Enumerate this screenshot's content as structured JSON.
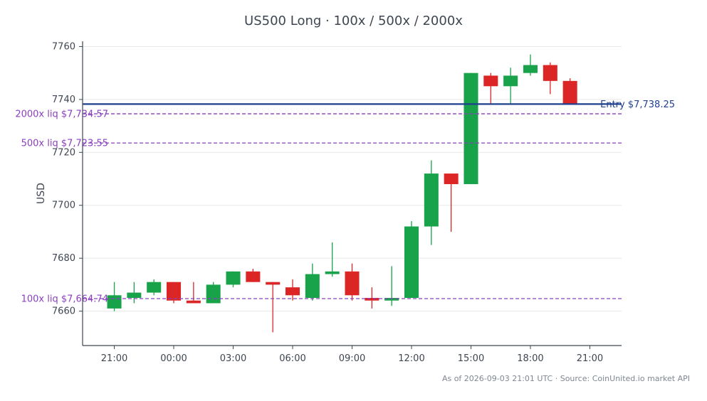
{
  "chart_data": {
    "type": "candlestick",
    "title": "US500 Long · 100x / 500x / 2000x",
    "ylabel": "USD",
    "xlabel": "",
    "ylim": [
      7647,
      7762
    ],
    "yticks": [
      7660,
      7680,
      7700,
      7720,
      7740,
      7760
    ],
    "xticks": [
      {
        "hour": 0,
        "label": "21:00"
      },
      {
        "hour": 3,
        "label": "00:00"
      },
      {
        "hour": 6,
        "label": "03:00"
      },
      {
        "hour": 9,
        "label": "06:00"
      },
      {
        "hour": 12,
        "label": "09:00"
      },
      {
        "hour": 15,
        "label": "12:00"
      },
      {
        "hour": 18,
        "label": "15:00"
      },
      {
        "hour": 21,
        "label": "18:00"
      },
      {
        "hour": 24,
        "label": "21:00"
      }
    ],
    "xlim": [
      -1.6,
      25.6
    ],
    "grid": true,
    "colors": {
      "up": "#18a34a",
      "down": "#dc2626",
      "entry": "#1f3f8f",
      "liq": "#8a3fc0",
      "grid": "#e8e8e8",
      "axis": "#3e4651"
    },
    "candles": [
      {
        "hour": 0,
        "open": 7661,
        "high": 7671,
        "low": 7660,
        "close": 7666
      },
      {
        "hour": 1,
        "open": 7665,
        "high": 7671,
        "low": 7663,
        "close": 7667
      },
      {
        "hour": 2,
        "open": 7667,
        "high": 7672,
        "low": 7666,
        "close": 7671
      },
      {
        "hour": 3,
        "open": 7671,
        "high": 7671,
        "low": 7663,
        "close": 7664
      },
      {
        "hour": 4,
        "open": 7664,
        "high": 7671,
        "low": 7663,
        "close": 7663
      },
      {
        "hour": 5,
        "open": 7663,
        "high": 7671,
        "low": 7663,
        "close": 7670
      },
      {
        "hour": 6,
        "open": 7670,
        "high": 7675,
        "low": 7669,
        "close": 7675
      },
      {
        "hour": 7,
        "open": 7675,
        "high": 7676,
        "low": 7671,
        "close": 7671
      },
      {
        "hour": 8,
        "open": 7671,
        "high": 7671,
        "low": 7652,
        "close": 7670
      },
      {
        "hour": 9,
        "open": 7669,
        "high": 7672,
        "low": 7664,
        "close": 7666
      },
      {
        "hour": 10,
        "open": 7665,
        "high": 7678,
        "low": 7664,
        "close": 7674
      },
      {
        "hour": 11,
        "open": 7674,
        "high": 7686,
        "low": 7673,
        "close": 7675
      },
      {
        "hour": 12,
        "open": 7675,
        "high": 7678,
        "low": 7664,
        "close": 7666
      },
      {
        "hour": 13,
        "open": 7665,
        "high": 7669,
        "low": 7661,
        "close": 7664
      },
      {
        "hour": 14,
        "open": 7664,
        "high": 7677,
        "low": 7662,
        "close": 7665
      },
      {
        "hour": 15,
        "open": 7665,
        "high": 7694,
        "low": 7665,
        "close": 7692
      },
      {
        "hour": 16,
        "open": 7692,
        "high": 7717,
        "low": 7685,
        "close": 7712
      },
      {
        "hour": 17,
        "open": 7712,
        "high": 7712,
        "low": 7690,
        "close": 7708
      },
      {
        "hour": 18,
        "open": 7708,
        "high": 7750,
        "low": 7708,
        "close": 7750
      },
      {
        "hour": 19,
        "open": 7749,
        "high": 7750,
        "low": 7738,
        "close": 7745
      },
      {
        "hour": 20,
        "open": 7745,
        "high": 7752,
        "low": 7738,
        "close": 7749
      },
      {
        "hour": 21,
        "open": 7750,
        "high": 7757,
        "low": 7749,
        "close": 7753
      },
      {
        "hour": 22,
        "open": 7753,
        "high": 7754,
        "low": 7742,
        "close": 7747
      },
      {
        "hour": 23,
        "open": 7747,
        "high": 7748,
        "low": 7738,
        "close": 7738
      }
    ],
    "entry": {
      "value": 7738.25,
      "label": "Entry $7,738.25"
    },
    "liquidations": [
      {
        "value": 7734.57,
        "label": "2000x liq $7,734.57"
      },
      {
        "value": 7723.55,
        "label": "500x liq $7,723.55"
      },
      {
        "value": 7664.74,
        "label": "100x liq $7,664.74"
      }
    ]
  },
  "footer": {
    "note": "As of 2026-09-03 21:01 UTC · Source: CoinUnited.io market API"
  }
}
